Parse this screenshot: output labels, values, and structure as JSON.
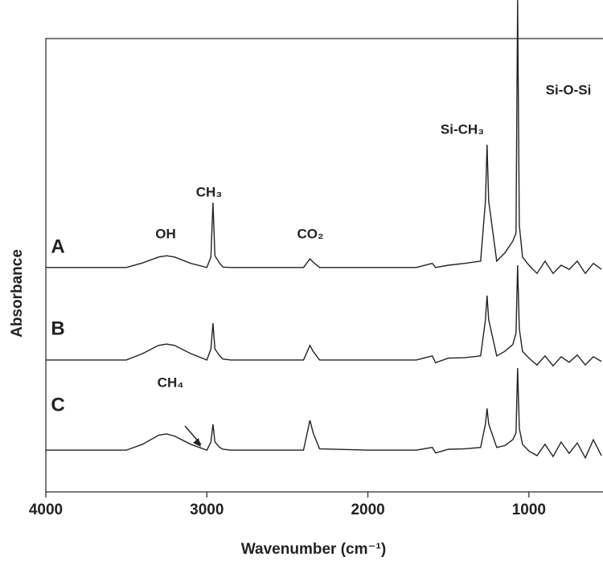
{
  "chart_data": {
    "type": "line",
    "x_label": "Wavenumber (cm⁻¹)",
    "y_label": "Absorbance",
    "x": [
      4000,
      3700,
      3500,
      3400,
      3300,
      3250,
      3200,
      3100,
      3000,
      2975,
      2962,
      2950,
      2920,
      2900,
      2850,
      2700,
      2400,
      2360,
      2340,
      2300,
      2000,
      1700,
      1600,
      1580,
      1500,
      1400,
      1300,
      1270,
      1260,
      1250,
      1200,
      1150,
      1100,
      1080,
      1070,
      1060,
      1040,
      1000,
      950,
      900,
      850,
      800,
      750,
      700,
      650,
      600,
      550
    ],
    "series": [
      {
        "name": "A",
        "color": "#222222",
        "values": [
          49.5,
          49.5,
          49.5,
          50.5,
          51.8,
          52.1,
          51.8,
          50.4,
          49.5,
          51.8,
          63.8,
          52.1,
          50.4,
          49.6,
          49.5,
          49.5,
          49.5,
          51.4,
          50.7,
          49.5,
          49.5,
          49.5,
          50.4,
          49.5,
          50.0,
          50.4,
          50.9,
          64.2,
          76.6,
          64.2,
          50.9,
          52.7,
          55.3,
          57.1,
          108.5,
          58.9,
          51.8,
          50.0,
          48.2,
          50.9,
          48.2,
          50.0,
          49.1,
          50.9,
          48.2,
          50.4,
          49.1
        ]
      },
      {
        "name": "B",
        "color": "#222222",
        "values": [
          29.1,
          29.1,
          29.1,
          30.5,
          32.3,
          32.6,
          32.3,
          30.5,
          29.1,
          31.5,
          37.2,
          31.5,
          30.0,
          29.3,
          29.1,
          29.1,
          29.1,
          32.3,
          31.0,
          29.1,
          29.1,
          29.1,
          30.0,
          28.5,
          29.5,
          29.6,
          30.0,
          38.0,
          43.3,
          38.0,
          30.0,
          31.0,
          32.5,
          35.0,
          50.0,
          36.0,
          31.0,
          29.5,
          28.0,
          30.0,
          27.8,
          29.8,
          28.6,
          30.2,
          28.0,
          29.8,
          28.8
        ]
      },
      {
        "name": "C",
        "color": "#222222",
        "values": [
          9.2,
          9.2,
          9.2,
          10.5,
          12.5,
          12.8,
          12.3,
          10.5,
          9.2,
          11.0,
          14.9,
          11.0,
          9.8,
          9.4,
          9.2,
          9.2,
          9.2,
          15.8,
          13.0,
          9.5,
          9.2,
          9.2,
          9.8,
          8.6,
          9.4,
          9.5,
          9.8,
          15.0,
          18.4,
          15.0,
          9.8,
          10.2,
          11.5,
          13.0,
          27.3,
          14.0,
          10.5,
          9.0,
          8.0,
          10.5,
          7.8,
          11.0,
          8.5,
          10.8,
          7.5,
          11.5,
          8.0
        ]
      }
    ],
    "annotations": [
      "OH",
      "CH₃",
      "CO₂",
      "Si-CH₃",
      "Si-O-Si",
      "CH₄"
    ],
    "xlim": [
      4000,
      550
    ],
    "xticks": [
      4000,
      3000,
      2000,
      1000
    ],
    "ylim": [
      0,
      100
    ]
  }
}
